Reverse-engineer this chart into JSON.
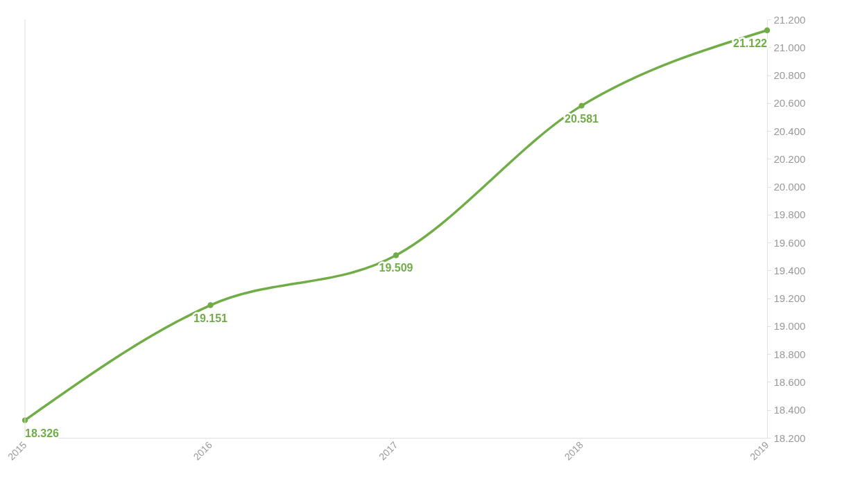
{
  "chart_data": {
    "type": "line",
    "categories": [
      "2015",
      "2016",
      "2017",
      "2018",
      "2019"
    ],
    "series": [
      {
        "color": "#70ad47",
        "values": [
          18.326,
          19.151,
          19.509,
          20.581,
          21.122
        ]
      }
    ],
    "ylim": [
      18.2,
      21.2
    ],
    "yticks": [
      {
        "value": 18.2,
        "label": "18.200"
      },
      {
        "value": 18.4,
        "label": "18.400"
      },
      {
        "value": 18.6,
        "label": "18.600"
      },
      {
        "value": 18.8,
        "label": "18.800"
      },
      {
        "value": 19.0,
        "label": "19.000"
      },
      {
        "value": 19.2,
        "label": "19.200"
      },
      {
        "value": 19.4,
        "label": "19.400"
      },
      {
        "value": 19.6,
        "label": "19.600"
      },
      {
        "value": 19.8,
        "label": "19.800"
      },
      {
        "value": 20.0,
        "label": "20.000"
      },
      {
        "value": 20.2,
        "label": "20.200"
      },
      {
        "value": 20.4,
        "label": "20.400"
      },
      {
        "value": 20.6,
        "label": "20.600"
      },
      {
        "value": 20.8,
        "label": "20.800"
      },
      {
        "value": 21.0,
        "label": "21.000"
      },
      {
        "value": 21.2,
        "label": "21.200"
      }
    ],
    "data_labels": true,
    "marker": "circle",
    "grid": false
  }
}
